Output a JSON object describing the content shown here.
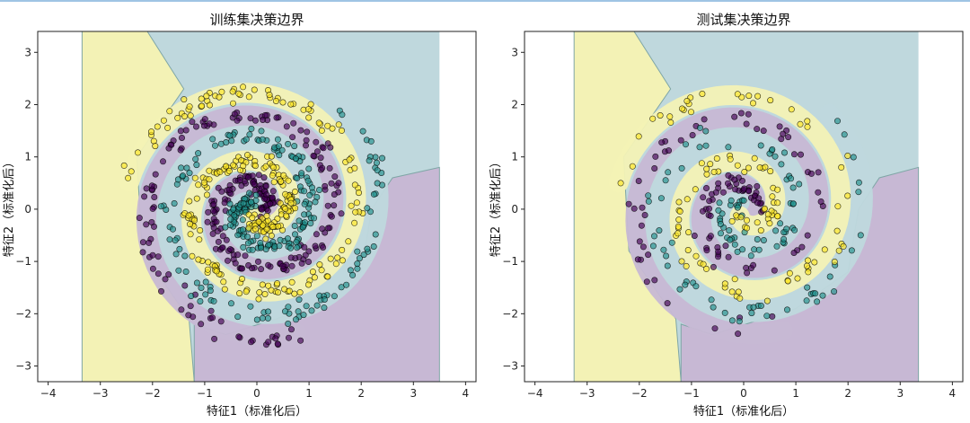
{
  "figure": {
    "top_rule_color": "#9fc4e4"
  },
  "colors": {
    "class_purple": "#440154",
    "class_teal": "#21918c",
    "class_yellow": "#fde725",
    "region_purple": "#c7b8d4",
    "region_teal": "#bfd8dd",
    "region_yellow": "#f3f2b5",
    "boundary": "#7fa6a6",
    "point_edge": "#000000"
  },
  "chart_data": [
    {
      "type": "scatter",
      "title": "训练集决策边界",
      "xlabel": "特征1（标准化后）",
      "ylabel": "特征2（标准化后）",
      "xlim": [
        -4.2,
        4.2
      ],
      "ylim": [
        -3.3,
        3.4
      ],
      "xticks": [
        "−4",
        "−3",
        "−2",
        "−1",
        "0",
        "1",
        "2",
        "3",
        "4"
      ],
      "yticks": [
        "−3",
        "−2",
        "−1",
        "0",
        "1",
        "2",
        "3"
      ],
      "decision_region_x": [
        -3.35,
        3.5
      ],
      "classes": [
        "purple",
        "teal",
        "yellow"
      ],
      "spiral": {
        "turns": 1.8,
        "r_outer": 2.35,
        "noise": 0.09
      },
      "points_per_class": 260,
      "grid": false,
      "legend": "none"
    },
    {
      "type": "scatter",
      "title": "测试集决策边界",
      "xlabel": "特征1（标准化后）",
      "ylabel": "特征2（标准化后）",
      "xlim": [
        -4.2,
        4.2
      ],
      "ylim": [
        -3.3,
        3.4
      ],
      "xticks": [
        "−4",
        "−3",
        "−2",
        "−1",
        "0",
        "1",
        "2",
        "3",
        "4"
      ],
      "yticks": [
        "−3",
        "−2",
        "−1",
        "0",
        "1",
        "2",
        "3"
      ],
      "decision_region_x": [
        -3.25,
        3.35
      ],
      "classes": [
        "purple",
        "teal",
        "yellow"
      ],
      "spiral": {
        "turns": 1.8,
        "r_outer": 2.3,
        "noise": 0.1
      },
      "points_per_class": 110,
      "grid": false,
      "legend": "none"
    }
  ]
}
